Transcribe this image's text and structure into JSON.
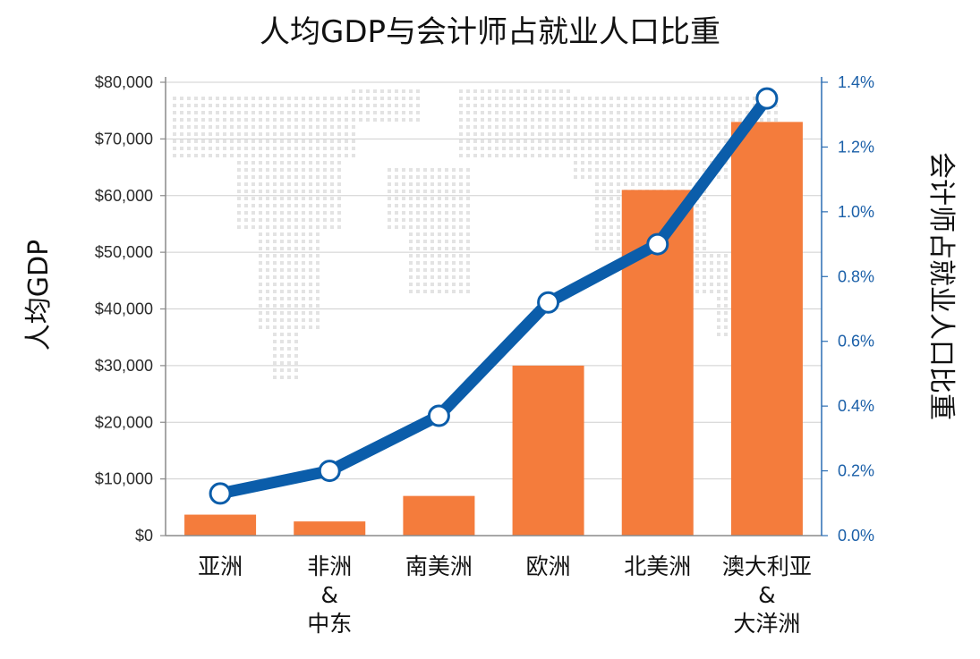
{
  "chart_data": {
    "type": "bar+line",
    "title": "人均GDP与会计师占就业人口比重",
    "ylabel_left": "人均GDP",
    "ylabel_right": "会计师占就业人口比重",
    "categories": [
      [
        "亚洲"
      ],
      [
        "非洲",
        "&",
        "中东"
      ],
      [
        "南美洲"
      ],
      [
        "欧洲"
      ],
      [
        "北美洲"
      ],
      [
        "澳大利亚",
        "&",
        "大洋洲"
      ]
    ],
    "series": [
      {
        "name": "人均GDP",
        "type": "bar",
        "axis": "left",
        "color": "#F47C3C",
        "values": [
          3700,
          2500,
          7000,
          30000,
          61000,
          73000
        ]
      },
      {
        "name": "会计师占就业人口比重",
        "type": "line",
        "axis": "right",
        "color": "#0B5DAA",
        "values": [
          0.13,
          0.2,
          0.37,
          0.72,
          0.9,
          1.35
        ]
      }
    ],
    "ylim_left": [
      0,
      80000
    ],
    "ylim_right": [
      0,
      1.4
    ],
    "yticks_left": [
      "$0",
      "$10,000",
      "$20,000",
      "$30,000",
      "$40,000",
      "$50,000",
      "$60,000",
      "$70,000",
      "$80,000"
    ],
    "yticks_right": [
      "0.0%",
      "0.2%",
      "0.4%",
      "0.6%",
      "0.8%",
      "1.0%",
      "1.2%",
      "1.4%"
    ],
    "grid": true,
    "colors": {
      "left_axis_text": "#2b2b2b",
      "right_axis_text": "#1a5fa8",
      "grid": "#cfcfcf",
      "map_dots": "#e3e3e3"
    }
  }
}
